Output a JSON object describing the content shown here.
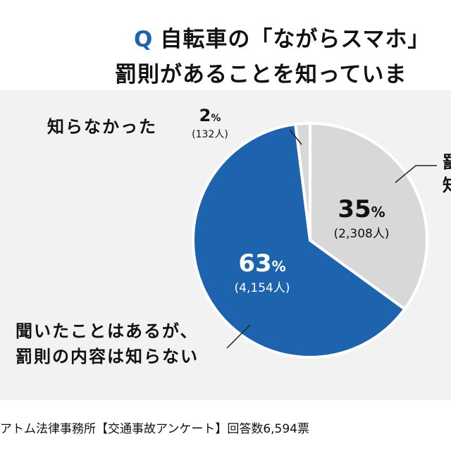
{
  "title": {
    "q_mark": "Q",
    "line1": "自転車の「ながらスマホ」",
    "line2": "罰則があることを知っていま"
  },
  "chart_data": {
    "type": "pie",
    "slices": [
      {
        "label": [
          "罰",
          "知"
        ],
        "percent": 35,
        "value_text": "35%",
        "count": 2308,
        "count_text": "(2,308人)",
        "color": "#d8d8d8",
        "text_color": "#111111"
      },
      {
        "label": [
          "聞いたことはあるが、",
          "罰則の内容は知らない"
        ],
        "percent": 63,
        "value_text": "63%",
        "count": 4154,
        "count_text": "(4,154人)",
        "color": "#1e63ad",
        "text_color": "#ffffff"
      },
      {
        "label": [
          "知らなかった"
        ],
        "percent": 2,
        "value_text": "2%",
        "count": 132,
        "count_text": "(132人)",
        "color": "#d8d8d8",
        "text_color": "#111111"
      }
    ]
  },
  "footer": {
    "source": "アトム法律事務所【交通事故アンケート】回答数6,594票"
  }
}
